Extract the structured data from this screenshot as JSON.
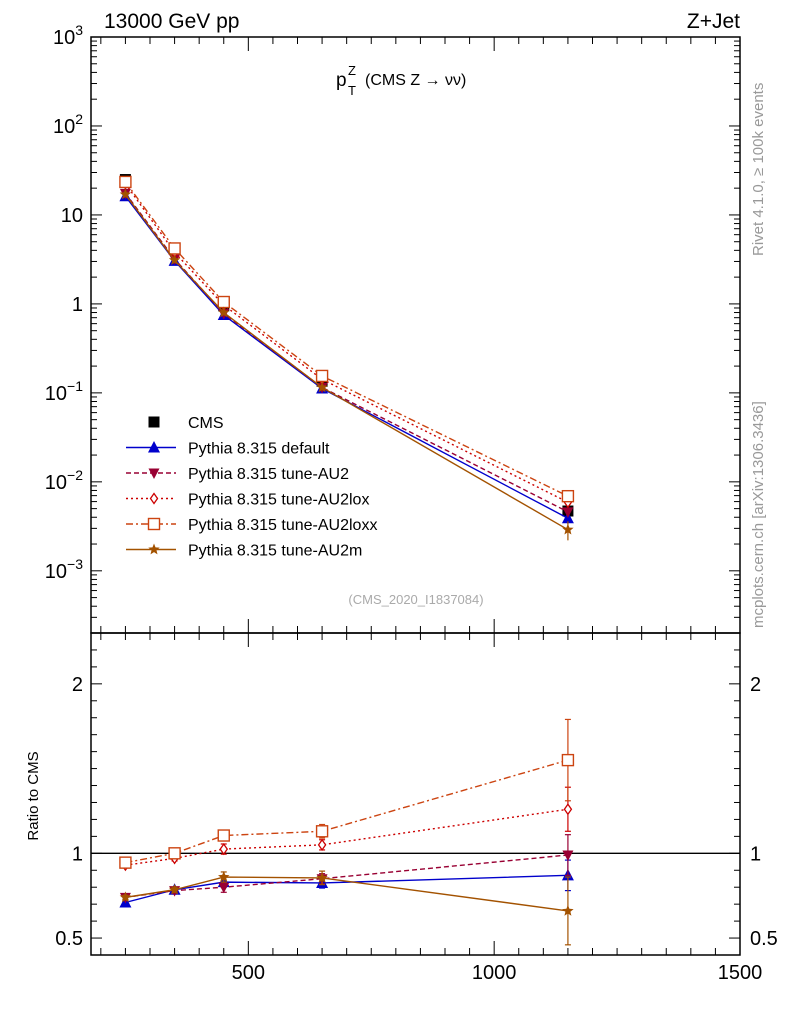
{
  "header": {
    "left_title": "13000 GeV pp",
    "right_title": "Z+Jet",
    "plot_title_main": "p",
    "plot_title_sup": "Z",
    "plot_title_sub": "T",
    "plot_title_rest": "(CMS Z → νν)",
    "analysis_label": "(CMS_2020_I1837084)",
    "side_label_top": "Rivet 4.1.0, ≥ 100k events",
    "side_label_bottom": "mcplots.cern.ch [arXiv:1306.3436]"
  },
  "chart_data": [
    {
      "type": "line",
      "scale": "log",
      "title": "pT Z (CMS Z → νν)",
      "ylim": [
        0.0002,
        1000
      ],
      "xlim": [
        180,
        1500
      ],
      "yticks": [
        {
          "value": 1000,
          "base": "10",
          "exp": "3"
        },
        {
          "value": 100,
          "base": "10",
          "exp": "2"
        },
        {
          "value": 10,
          "base": "10",
          "exp": ""
        },
        {
          "value": 1,
          "base": "1",
          "exp": ""
        },
        {
          "value": 0.1,
          "base": "10",
          "exp": "−1"
        },
        {
          "value": 0.01,
          "base": "10",
          "exp": "−2"
        },
        {
          "value": 0.001,
          "base": "10",
          "exp": "−3"
        }
      ],
      "x": [
        250,
        350,
        450,
        650,
        1150
      ],
      "series": [
        {
          "name": "CMS",
          "color": "#000000",
          "marker": "square",
          "dash": "",
          "values": [
            25,
            4.2,
            0.95,
            0.135,
            0.0047
          ],
          "errors": [
            0,
            0,
            0,
            0,
            0
          ]
        },
        {
          "name": "Pythia 8.315 default",
          "color": "#0000cc",
          "marker": "triangle",
          "dash": "",
          "values": [
            16.2,
            3.05,
            0.75,
            0.112,
            0.0039
          ],
          "errors": [
            0,
            0,
            0,
            0,
            0.0005
          ]
        },
        {
          "name": "Pythia 8.315 tune-AU2",
          "color": "#990033",
          "marker": "triangle-down",
          "dash": "5,3",
          "values": [
            17.5,
            3.2,
            0.78,
            0.115,
            0.0046
          ],
          "errors": [
            0,
            0,
            0,
            0,
            0.0006
          ]
        },
        {
          "name": "Pythia 8.315 tune-AU2lox",
          "color": "#cc0000",
          "marker": "diamond",
          "dash": "2,3",
          "values": [
            22.5,
            3.8,
            0.97,
            0.142,
            0.0059
          ],
          "errors": [
            0,
            0,
            0,
            0,
            0.0007
          ]
        },
        {
          "name": "Pythia 8.315 tune-AU2loxx",
          "color": "#cc4411",
          "marker": "open-square",
          "dash": "7,3,2,3",
          "values": [
            23.5,
            4.2,
            1.05,
            0.155,
            0.0069
          ],
          "errors": [
            0,
            0,
            0,
            0,
            0.0008
          ]
        },
        {
          "name": "Pythia 8.315 tune-AU2m",
          "color": "#a35200",
          "marker": "star",
          "dash": "",
          "values": [
            17,
            3.1,
            0.8,
            0.115,
            0.0029
          ],
          "errors": [
            0,
            0,
            0,
            0,
            0.0007
          ]
        }
      ]
    },
    {
      "type": "line",
      "title": "Ratio to CMS",
      "ylabel": "Ratio to CMS",
      "ylim": [
        0.4,
        2.3
      ],
      "xlim": [
        180,
        1500
      ],
      "yticks": [
        0.5,
        1,
        2
      ],
      "xticks": [
        500,
        1000,
        1500
      ],
      "reference": 1,
      "x": [
        250,
        350,
        450,
        650,
        1150
      ],
      "series": [
        {
          "name": "Pythia 8.315 default",
          "color": "#0000cc",
          "marker": "triangle",
          "dash": "",
          "values": [
            0.71,
            0.785,
            0.83,
            0.825,
            0.87
          ],
          "errors": [
            0.012,
            0.015,
            0.03,
            0.03,
            0.09
          ]
        },
        {
          "name": "Pythia 8.315 tune-AU2",
          "color": "#990033",
          "marker": "triangle-down",
          "dash": "5,3",
          "values": [
            0.74,
            0.78,
            0.8,
            0.85,
            0.99
          ],
          "errors": [
            0.012,
            0.015,
            0.03,
            0.03,
            0.12
          ]
        },
        {
          "name": "Pythia 8.315 tune-AU2lox",
          "color": "#cc0000",
          "marker": "diamond",
          "dash": "2,3",
          "values": [
            0.93,
            0.97,
            1.025,
            1.05,
            1.26
          ],
          "errors": [
            0.012,
            0.015,
            0.03,
            0.03,
            0.13
          ]
        },
        {
          "name": "Pythia 8.315 tune-AU2loxx",
          "color": "#cc4411",
          "marker": "open-square",
          "dash": "7,3,2,3",
          "values": [
            0.945,
            1,
            1.105,
            1.13,
            1.55
          ],
          "errors": [
            0.012,
            0.015,
            0.03,
            0.04,
            0.24
          ]
        },
        {
          "name": "Pythia 8.315 tune-AU2m",
          "color": "#a35200",
          "marker": "star",
          "dash": "",
          "values": [
            0.74,
            0.785,
            0.86,
            0.855,
            0.66
          ],
          "errors": [
            0.012,
            0.015,
            0.03,
            0.04,
            0.2
          ]
        }
      ]
    }
  ]
}
